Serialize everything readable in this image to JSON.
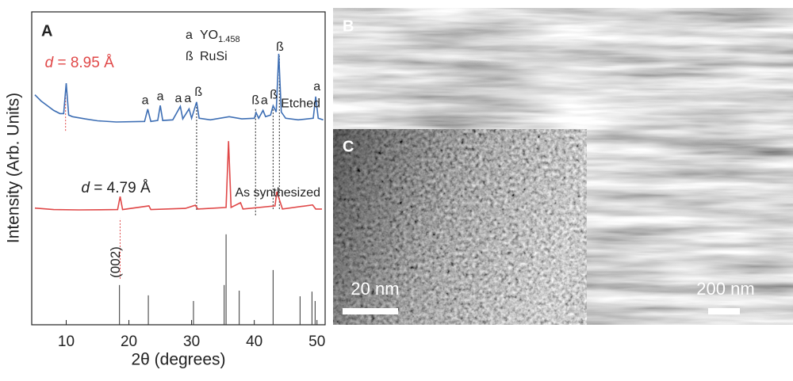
{
  "chart_data": {
    "type": "line",
    "panel_label": "A",
    "xlabel": "2θ (degrees)",
    "ylabel": "Intensity (Arb. Units)",
    "xlim": [
      4.5,
      51.3
    ],
    "ylim": [
      0,
      100
    ],
    "xticks": [
      10,
      20,
      30,
      40,
      50
    ],
    "phase_legend": [
      {
        "symbol": "a",
        "formula": "YO",
        "subscript": "1.458"
      },
      {
        "symbol": "ß",
        "formula": "RuSi"
      }
    ],
    "series": [
      {
        "name": "Etched",
        "color": "#3d6eb4",
        "x": [
          5,
          6,
          7,
          8,
          9,
          9.6,
          10,
          10.4,
          11,
          13,
          15,
          18,
          22.5,
          23,
          23.5,
          24.6,
          25,
          25.4,
          27,
          28.2,
          28.6,
          29.6,
          30,
          30.8,
          31.2,
          33,
          36,
          38,
          40,
          40.3,
          40.7,
          41.4,
          41.8,
          42.6,
          43,
          43.5,
          43.9,
          44.3,
          45,
          47,
          49.4,
          49.8,
          50.2,
          51
        ],
        "values": [
          73.5,
          71.5,
          70,
          68.5,
          67.5,
          67.5,
          77.2,
          67,
          66.5,
          65.8,
          65.2,
          64.8,
          65,
          68.9,
          65,
          65.3,
          70.1,
          65.3,
          65.5,
          69.8,
          65.8,
          69,
          66,
          71.2,
          66,
          65.5,
          66.5,
          65.8,
          66,
          67.8,
          66,
          68.5,
          66.5,
          67,
          70,
          68,
          86.6,
          68,
          66,
          65.5,
          66,
          72.9,
          66,
          65.5
        ]
      },
      {
        "name": "As synthesized",
        "color": "#e04848",
        "x": [
          5,
          8,
          12,
          18.2,
          18.6,
          19,
          23.2,
          23.5,
          29,
          30.6,
          31,
          35.5,
          35.9,
          36.3,
          37.8,
          38.2,
          43.3,
          43.6,
          44,
          44.5,
          49.3,
          49.8,
          50.8
        ],
        "values": [
          37.3,
          36.8,
          36.7,
          36.8,
          41,
          36.8,
          38,
          36.8,
          37.2,
          38.2,
          37,
          37.5,
          58.7,
          37.5,
          39,
          37,
          38,
          42.5,
          40,
          37,
          38.3,
          37,
          37
        ]
      },
      {
        "style": "stick",
        "color": "#333333",
        "x": [
          18.5,
          23.1,
          30.3,
          35.2,
          35.5,
          37.6,
          43,
          47.3,
          49.2,
          49.7
        ],
        "values": [
          12.7,
          9.4,
          7.6,
          12.7,
          28.9,
          10.9,
          17.5,
          9.1,
          10.6,
          7.6
        ]
      }
    ],
    "vlines": [
      {
        "x": 9.9,
        "y": [
          62,
          75
        ],
        "color": "#e04848"
      },
      {
        "x": 18.6,
        "y": [
          14.7,
          34
        ],
        "color": "#e04848"
      },
      {
        "x": 30.8,
        "y": [
          36.7,
          71
        ]
      },
      {
        "x": 40.2,
        "y": [
          35,
          69
        ]
      },
      {
        "x": 43.0,
        "y": [
          37,
          70
        ]
      },
      {
        "x": 44.0,
        "y": [
          37,
          86
        ]
      }
    ],
    "peak_labels": [
      {
        "label": "a",
        "x": 22.6,
        "y": 71.6
      },
      {
        "label": "a",
        "x": 25,
        "y": 72.9
      },
      {
        "label": "a",
        "x": 27.9,
        "y": 72.2
      },
      {
        "label": "a",
        "x": 29.4,
        "y": 72.2
      },
      {
        "label": "ß",
        "x": 31.1,
        "y": 74.2
      },
      {
        "label": "ß",
        "x": 40.2,
        "y": 71.6
      },
      {
        "label": "a",
        "x": 41.6,
        "y": 71.6
      },
      {
        "label": "ß",
        "x": 43.1,
        "y": 73.4
      },
      {
        "label": "ß",
        "x": 44.1,
        "y": 88.6
      },
      {
        "label": "a",
        "x": 50,
        "y": 76
      }
    ],
    "d_labels": [
      {
        "var": "d",
        "text": " = 8.95 Å",
        "color": "#e04848",
        "x": 6.6,
        "y": 83.5
      },
      {
        "var": "d",
        "text": " = 4.79 Å",
        "color": "#222222",
        "x": 12.4,
        "y": 43.5
      }
    ],
    "miller_label": {
      "text": "(002)",
      "x": 18.0,
      "y": 20
    }
  },
  "panels": [
    {
      "label": "B",
      "scale_bar": "200 nm"
    },
    {
      "label": "C",
      "scale_bar": "20 nm"
    }
  ]
}
